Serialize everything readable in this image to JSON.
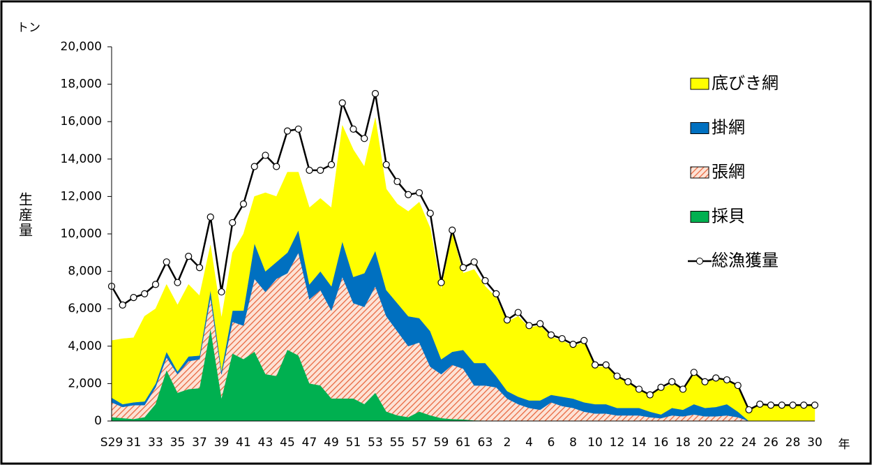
{
  "chart_data": {
    "type": "stacked_area",
    "y_unit": "トン",
    "y_label": "生産量",
    "x_label": "年",
    "categories": [
      "S29",
      null,
      "31",
      null,
      "33",
      null,
      "35",
      null,
      "37",
      null,
      "39",
      null,
      "41",
      null,
      "43",
      null,
      "45",
      null,
      "47",
      null,
      "49",
      null,
      "51",
      null,
      "53",
      null,
      "55",
      null,
      "57",
      null,
      "59",
      null,
      "61",
      null,
      "63",
      null,
      "2",
      null,
      "4",
      null,
      "6",
      null,
      "8",
      null,
      "10",
      null,
      "12",
      null,
      "14",
      null,
      "16",
      null,
      "18",
      null,
      "20",
      null,
      "22",
      null,
      "24",
      null,
      "26",
      null,
      "28",
      null,
      "30"
    ],
    "series": [
      {
        "name": "採貝",
        "color": "#00b050",
        "values": [
          200,
          150,
          100,
          200,
          900,
          2700,
          1500,
          1700,
          1750,
          4900,
          1200,
          3600,
          3300,
          3700,
          2500,
          2400,
          3800,
          3500,
          2000,
          1900,
          1200,
          1200,
          1200,
          900,
          1500,
          500,
          300,
          200,
          500,
          300,
          150,
          100,
          80,
          30,
          20,
          0,
          0,
          0,
          0,
          0,
          0,
          0,
          0,
          0,
          0,
          0,
          0,
          0,
          0,
          0,
          0,
          0,
          0,
          0,
          0,
          0,
          0,
          0,
          0,
          0,
          0,
          0,
          0,
          0,
          0
        ]
      },
      {
        "name": "張網",
        "color": "#e8643c",
        "values": [
          800,
          600,
          750,
          650,
          900,
          700,
          1000,
          1500,
          1550,
          1700,
          1300,
          1700,
          1800,
          3900,
          4400,
          5200,
          4100,
          5500,
          4500,
          5100,
          4700,
          6500,
          5100,
          5200,
          5700,
          5100,
          4500,
          3800,
          3700,
          2600,
          2350,
          2900,
          2720,
          1870,
          1880,
          1800,
          1200,
          900,
          700,
          600,
          1000,
          800,
          700,
          500,
          400,
          400,
          300,
          300,
          300,
          200,
          150,
          300,
          250,
          350,
          250,
          250,
          300,
          200,
          0,
          0,
          0,
          0,
          0,
          0,
          0
        ]
      },
      {
        "name": "掛網",
        "color": "#0070c0",
        "values": [
          250,
          150,
          150,
          200,
          200,
          300,
          150,
          250,
          200,
          400,
          200,
          600,
          800,
          1900,
          1100,
          900,
          1100,
          1200,
          800,
          1000,
          1300,
          1900,
          1400,
          1800,
          1900,
          1400,
          1500,
          1600,
          1300,
          1900,
          800,
          700,
          1000,
          1200,
          1200,
          600,
          400,
          400,
          400,
          500,
          400,
          500,
          500,
          500,
          500,
          500,
          400,
          400,
          400,
          300,
          200,
          400,
          350,
          550,
          450,
          500,
          600,
          300,
          0,
          0,
          0,
          0,
          0,
          0,
          0
        ]
      },
      {
        "name": "底びき網",
        "color": "#ffff00",
        "values": [
          3050,
          3500,
          3450,
          4550,
          4000,
          3600,
          3550,
          3850,
          3200,
          2400,
          2800,
          3100,
          4100,
          2500,
          4200,
          3500,
          4300,
          3100,
          4100,
          3900,
          4200,
          6200,
          6800,
          5700,
          7100,
          5400,
          5300,
          5600,
          6200,
          5500,
          3700,
          6300,
          4100,
          5000,
          4100,
          4200,
          3700,
          4300,
          3900,
          4000,
          3100,
          3000,
          2800,
          3200,
          2000,
          2000,
          1700,
          1300,
          1000,
          900,
          1350,
          1300,
          1100,
          1600,
          1400,
          1450,
          1300,
          1300,
          600,
          900,
          850,
          850,
          850,
          850,
          850
        ]
      }
    ],
    "total": {
      "name": "総漁獲量",
      "color": "#000000",
      "values": [
        7200,
        6200,
        6600,
        6800,
        7300,
        8500,
        7400,
        8800,
        8200,
        10900,
        6900,
        10600,
        11600,
        13600,
        14200,
        13600,
        15500,
        15600,
        13400,
        13400,
        13700,
        17000,
        15600,
        15100,
        17500,
        13700,
        12800,
        12100,
        12200,
        11100,
        7400,
        10200,
        8200,
        8500,
        7500,
        6800,
        5400,
        5800,
        5100,
        5200,
        4600,
        4400,
        4100,
        4300,
        3000,
        3000,
        2400,
        2100,
        1700,
        1400,
        1800,
        2100,
        1700,
        2600,
        2100,
        2300,
        2200,
        1900,
        600,
        900,
        850,
        850,
        850,
        850,
        850
      ]
    },
    "ylim": [
      0,
      20000
    ],
    "yticks": [
      0,
      {
        "value": 2000,
        "label": "2,000"
      },
      {
        "value": 4000,
        "label": "4,000"
      },
      {
        "value": 6000,
        "label": "6,000"
      },
      {
        "value": 8000,
        "label": "8,000"
      },
      {
        "value": 10000,
        "label": "10,000"
      },
      {
        "value": 12000,
        "label": "12,000"
      },
      {
        "value": 14000,
        "label": "14,000"
      },
      {
        "value": 16000,
        "label": "16,000"
      },
      {
        "value": 18000,
        "label": "18,000"
      },
      {
        "value": 20000,
        "label": "20,000"
      }
    ],
    "grid": false,
    "legend": "right"
  }
}
